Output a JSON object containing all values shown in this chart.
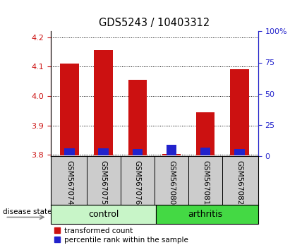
{
  "title": "GDS5243 / 10403312",
  "samples": [
    "GSM567074",
    "GSM567075",
    "GSM567076",
    "GSM567080",
    "GSM567081",
    "GSM567082"
  ],
  "groups": [
    "control",
    "control",
    "control",
    "arthritis",
    "arthritis",
    "arthritis"
  ],
  "red_values": [
    4.11,
    4.155,
    4.055,
    3.802,
    3.945,
    4.09
  ],
  "blue_heights": [
    0.025,
    0.025,
    0.022,
    0.038,
    0.028,
    0.023
  ],
  "ylim_left": [
    3.795,
    4.22
  ],
  "yticks_left": [
    3.8,
    3.9,
    4.0,
    4.1,
    4.2
  ],
  "ylim_right": [
    0,
    100
  ],
  "yticks_right": [
    0,
    25,
    50,
    75,
    100
  ],
  "yticklabels_right": [
    "0",
    "25",
    "50",
    "75",
    "100%"
  ],
  "bar_base": 3.797,
  "bar_width": 0.55,
  "blue_bar_width": 0.3,
  "red_color": "#cc1111",
  "blue_color": "#2222cc",
  "tick_color_left": "#cc1111",
  "tick_color_right": "#2222cc",
  "control_color": "#c8f5c8",
  "arthritis_color": "#44d944",
  "gray_color": "#cccccc",
  "disease_state_label": "disease state",
  "legend_red": "transformed count",
  "legend_blue": "percentile rank within the sample"
}
